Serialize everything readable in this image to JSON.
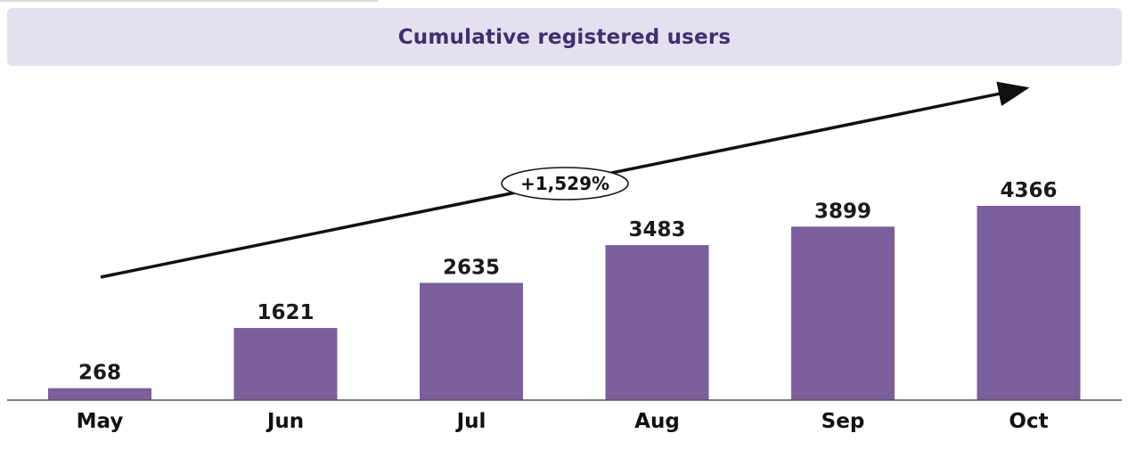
{
  "chart_data": {
    "type": "bar",
    "title": "Cumulative registered users",
    "categories": [
      "May",
      "Jun",
      "Jul",
      "Aug",
      "Sep",
      "Oct"
    ],
    "values": [
      268,
      1621,
      2635,
      3483,
      3899,
      4366
    ],
    "xlabel": "",
    "ylabel": "",
    "ylim": [
      0,
      4366
    ],
    "grid": false,
    "annotations": [
      {
        "text": "+1,529%",
        "kind": "growth-arrow",
        "from": "May",
        "to": "Oct"
      }
    ]
  },
  "colors": {
    "bar": "#7b5e9c",
    "title_background": "#e4e0f0",
    "title_text": "#3f2f6e",
    "axis": "#555555",
    "arrow": "#111111"
  }
}
